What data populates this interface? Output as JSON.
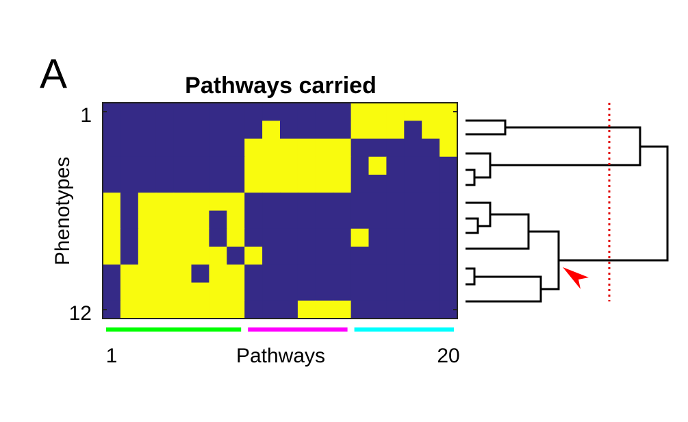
{
  "panel_label": "A",
  "chart_data": {
    "type": "heatmap",
    "title": "Pathways carried",
    "ylabel": "Phenotypes",
    "xlabel": "Pathways",
    "y_ticks": [
      "1",
      "12"
    ],
    "x_ticks": [
      "1",
      "20"
    ],
    "n_rows": 12,
    "n_cols": 20,
    "colors": {
      "absent": "#352a87",
      "present": "#f9fb0e"
    },
    "matrix": [
      [
        0,
        0,
        0,
        0,
        0,
        0,
        0,
        0,
        0,
        0,
        0,
        0,
        0,
        0,
        1,
        1,
        1,
        1,
        1,
        1
      ],
      [
        0,
        0,
        0,
        0,
        0,
        0,
        0,
        0,
        0,
        1,
        0,
        0,
        0,
        0,
        1,
        1,
        1,
        0,
        1,
        1
      ],
      [
        0,
        0,
        0,
        0,
        0,
        0,
        0,
        0,
        1,
        1,
        1,
        1,
        1,
        1,
        0,
        0,
        0,
        0,
        0,
        1
      ],
      [
        0,
        0,
        0,
        0,
        0,
        0,
        0,
        0,
        1,
        1,
        1,
        1,
        1,
        1,
        0,
        1,
        0,
        0,
        0,
        0
      ],
      [
        0,
        0,
        0,
        0,
        0,
        0,
        0,
        0,
        1,
        1,
        1,
        1,
        1,
        1,
        0,
        0,
        0,
        0,
        0,
        0
      ],
      [
        1,
        0,
        1,
        1,
        1,
        1,
        1,
        1,
        0,
        0,
        0,
        0,
        0,
        0,
        0,
        0,
        0,
        0,
        0,
        0
      ],
      [
        1,
        0,
        1,
        1,
        1,
        1,
        0,
        1,
        0,
        0,
        0,
        0,
        0,
        0,
        0,
        0,
        0,
        0,
        0,
        0
      ],
      [
        1,
        0,
        1,
        1,
        1,
        1,
        0,
        1,
        0,
        0,
        0,
        0,
        0,
        0,
        1,
        0,
        0,
        0,
        0,
        0
      ],
      [
        1,
        0,
        1,
        1,
        1,
        1,
        1,
        0,
        1,
        0,
        0,
        0,
        0,
        0,
        0,
        0,
        0,
        0,
        0,
        0
      ],
      [
        0,
        1,
        1,
        1,
        1,
        0,
        1,
        1,
        0,
        0,
        0,
        0,
        0,
        0,
        0,
        0,
        0,
        0,
        0,
        0
      ],
      [
        0,
        1,
        1,
        1,
        1,
        1,
        1,
        1,
        0,
        0,
        0,
        0,
        0,
        0,
        0,
        0,
        0,
        0,
        0,
        0
      ],
      [
        0,
        1,
        1,
        1,
        1,
        1,
        1,
        1,
        0,
        0,
        0,
        1,
        1,
        1,
        0,
        0,
        0,
        0,
        0,
        0
      ]
    ],
    "column_groups": [
      {
        "start": 1,
        "end": 8,
        "color": "#00ff00"
      },
      {
        "start": 9,
        "end": 14,
        "color": "#ff00ff"
      },
      {
        "start": 15,
        "end": 20,
        "color": "#00ffff"
      }
    ],
    "dendrogram": {
      "leaf_order": [
        1,
        2,
        3,
        4,
        5,
        6,
        7,
        8,
        9,
        10,
        11,
        12
      ],
      "cutoff_line_color": "#e00000",
      "arrow_color": "#ff0000"
    }
  }
}
